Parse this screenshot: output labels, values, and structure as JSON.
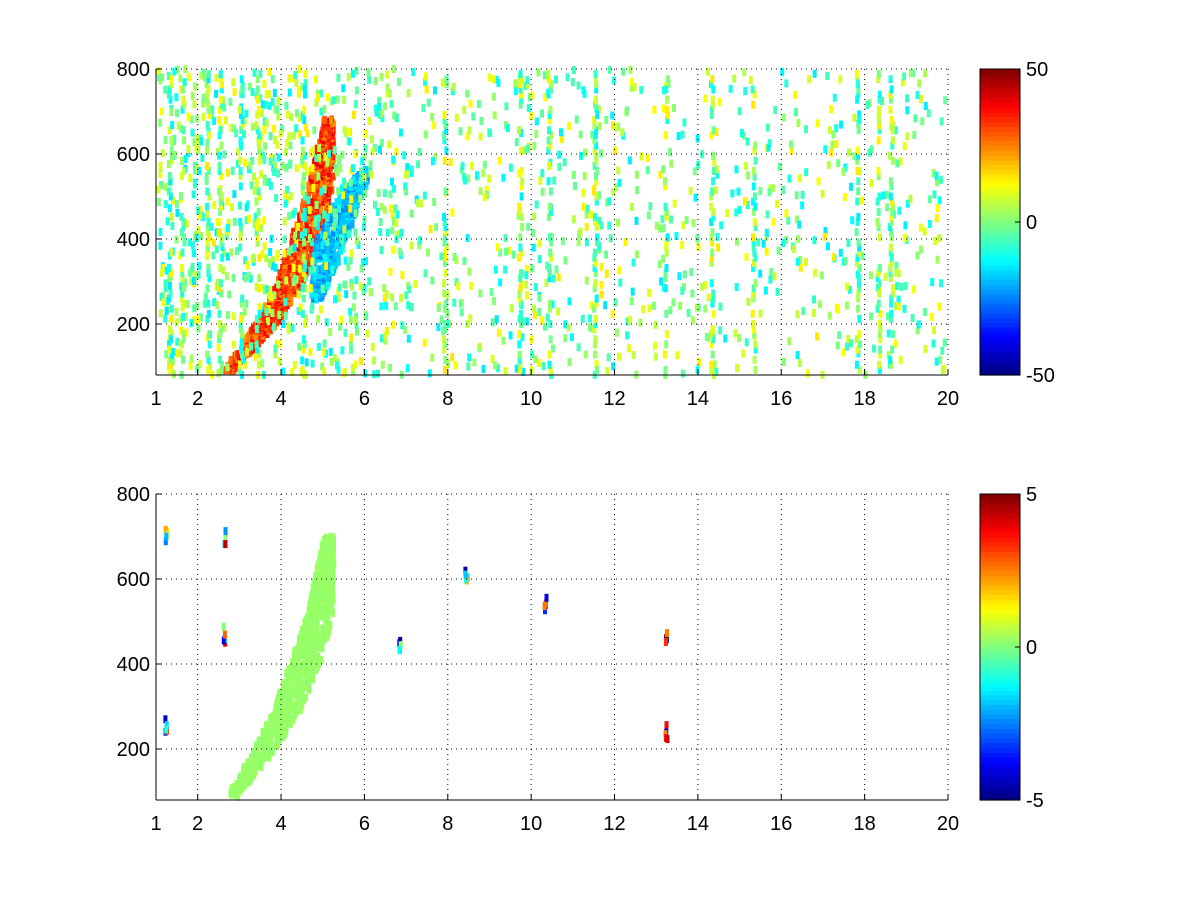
{
  "chart_data": [
    {
      "type": "heatmap",
      "title": "",
      "xlabel": "",
      "ylabel": "",
      "colormap": "jet",
      "xlim": [
        1,
        20
      ],
      "ylim": [
        80,
        800
      ],
      "xticks": [
        1,
        2,
        4,
        6,
        8,
        10,
        12,
        14,
        16,
        18,
        20
      ],
      "yticks": [
        200,
        400,
        600,
        800
      ],
      "grid": true,
      "colorbar": {
        "min": -50,
        "max": 50,
        "ticks": [
          50,
          0,
          -50
        ]
      },
      "features": [
        {
          "kind": "ridge",
          "points": [
            [
              2.7,
              90
            ],
            [
              3.6,
              200
            ],
            [
              4.1,
              280
            ],
            [
              4.5,
              380
            ],
            [
              4.9,
              520
            ],
            [
              5.1,
              680
            ]
          ],
          "value": 40
        },
        {
          "kind": "ridge",
          "points": [
            [
              4.8,
              260
            ],
            [
              5.1,
              380
            ],
            [
              5.5,
              480
            ],
            [
              6.0,
              560
            ]
          ],
          "value": -25
        },
        {
          "kind": "scatter_background",
          "x_range": [
            1,
            20
          ],
          "value_range": [
            -15,
            15
          ]
        }
      ]
    },
    {
      "type": "heatmap",
      "title": "",
      "xlabel": "",
      "ylabel": "",
      "colormap": "jet",
      "xlim": [
        1,
        20
      ],
      "ylim": [
        80,
        800
      ],
      "xticks": [
        1,
        2,
        4,
        6,
        8,
        10,
        12,
        14,
        16,
        18,
        20
      ],
      "yticks": [
        200,
        400,
        600,
        800
      ],
      "grid": true,
      "colorbar": {
        "min": -5,
        "max": 5,
        "ticks": [
          5,
          0,
          -5
        ]
      },
      "features": [
        {
          "kind": "ridge",
          "points": [
            [
              2.8,
              90
            ],
            [
              3.5,
              190
            ],
            [
              4.1,
              290
            ],
            [
              4.6,
              420
            ],
            [
              4.9,
              520
            ],
            [
              5.1,
              700
            ]
          ],
          "value": 0.3
        },
        {
          "kind": "isolated",
          "points": [
            [
              1.2,
              700
            ],
            [
              1.2,
              250
            ],
            [
              2.6,
              700
            ],
            [
              2.6,
              470
            ],
            [
              6.8,
              445
            ],
            [
              8.4,
              600
            ],
            [
              10.3,
              545
            ],
            [
              13.2,
              470
            ],
            [
              13.2,
              240
            ]
          ]
        }
      ]
    }
  ]
}
